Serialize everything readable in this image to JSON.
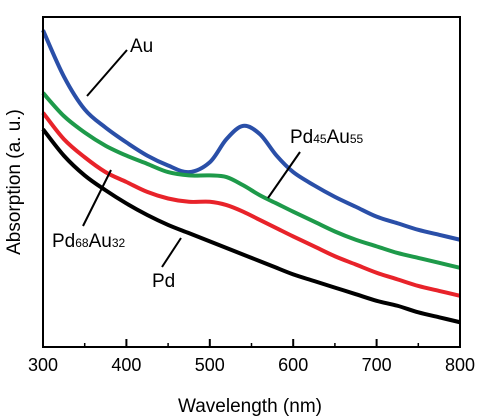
{
  "chart_data": {
    "type": "line",
    "title": "",
    "xlabel": "Wavelength (nm)",
    "ylabel": "Absorption (a. u.)",
    "xlim": [
      300,
      800
    ],
    "ylim": [
      0,
      100
    ],
    "xticks": [
      300,
      400,
      500,
      600,
      700,
      800
    ],
    "yticks_labeled": false,
    "grid": false,
    "legend": "none",
    "series": [
      {
        "name": "Au",
        "color": "#2a4fa8",
        "x": [
          300,
          325,
          350,
          375,
          400,
          425,
          450,
          475,
          500,
          520,
          540,
          560,
          580,
          600,
          625,
          650,
          675,
          700,
          725,
          750,
          775,
          800
        ],
        "y": [
          96,
          82,
          72,
          66.5,
          62,
          58,
          55,
          53,
          56,
          63,
          67,
          64.5,
          58,
          53,
          49,
          45.5,
          42.5,
          39.5,
          37.5,
          35.5,
          34,
          32.5
        ]
      },
      {
        "name": "Pd45Au55",
        "color": "#1e9a4a",
        "x": [
          300,
          325,
          350,
          375,
          400,
          425,
          450,
          475,
          500,
          520,
          540,
          560,
          580,
          600,
          625,
          650,
          675,
          700,
          725,
          750,
          775,
          800
        ],
        "y": [
          77,
          70,
          65,
          61,
          58,
          55.5,
          53,
          52,
          52,
          51.5,
          49,
          46,
          43.5,
          41,
          38,
          35,
          32.5,
          30.5,
          28.5,
          27,
          25.5,
          24
        ]
      },
      {
        "name": "Pd68Au32",
        "color": "#e8232a",
        "x": [
          300,
          325,
          350,
          375,
          400,
          425,
          450,
          475,
          500,
          520,
          540,
          560,
          580,
          600,
          625,
          650,
          675,
          700,
          725,
          750,
          775,
          800
        ],
        "y": [
          71,
          63,
          57.5,
          53,
          50,
          47,
          45,
          44,
          44,
          43,
          41,
          38.5,
          36,
          33.5,
          30.5,
          27.5,
          25,
          22.5,
          20.5,
          18.5,
          17,
          15.5
        ]
      },
      {
        "name": "Pd",
        "color": "#000000",
        "x": [
          300,
          325,
          350,
          375,
          400,
          425,
          450,
          475,
          500,
          525,
          550,
          575,
          600,
          625,
          650,
          675,
          700,
          725,
          750,
          775,
          800
        ],
        "y": [
          66,
          58,
          52,
          47.5,
          43.5,
          40,
          37,
          34.5,
          32,
          29.5,
          27,
          24.5,
          22,
          20,
          18,
          16,
          14,
          12.5,
          10.5,
          9,
          7.5
        ]
      }
    ],
    "annotations": [
      {
        "base": "Au",
        "sub1": "",
        "mid": "",
        "sub2": "",
        "series": "Au"
      },
      {
        "base": "Pd",
        "sub1": "45",
        "mid": "Au",
        "sub2": "55",
        "series": "Pd45Au55"
      },
      {
        "base": "Pd",
        "sub1": "68",
        "mid": "Au",
        "sub2": "32",
        "series": "Pd68Au32"
      },
      {
        "base": "Pd",
        "sub1": "",
        "mid": "",
        "sub2": "",
        "series": "Pd"
      }
    ]
  }
}
